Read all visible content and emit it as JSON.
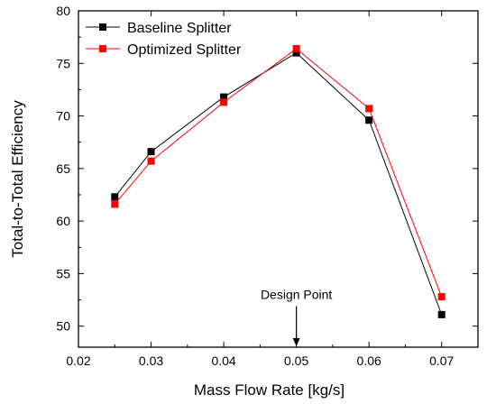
{
  "chart_data": {
    "type": "line",
    "title": "",
    "xlabel": "Mass Flow Rate [kg/s]",
    "ylabel": "Total-to-Total Efficiency",
    "xlim": [
      0.02,
      0.075
    ],
    "ylim": [
      48,
      80
    ],
    "xticks": [
      0.02,
      0.03,
      0.04,
      0.05,
      0.06,
      0.07
    ],
    "xtick_labels": [
      "0.02",
      "0.03",
      "0.04",
      "0.05",
      "0.06",
      "0.07"
    ],
    "yticks": [
      50,
      55,
      60,
      65,
      70,
      75,
      80
    ],
    "ytick_labels": [
      "50",
      "55",
      "60",
      "65",
      "70",
      "75",
      "80"
    ],
    "x": [
      0.025,
      0.03,
      0.04,
      0.05,
      0.06,
      0.07
    ],
    "series": [
      {
        "name": "Baseline Splitter",
        "line_color": "#000000",
        "marker_color": "#000000",
        "marker": "square",
        "values": [
          62.3,
          66.6,
          71.8,
          76.0,
          69.6,
          51.1
        ]
      },
      {
        "name": "Optimized Splitter",
        "line_color": "#ff0000",
        "marker_color": "#ff0000",
        "marker": "square",
        "values": [
          61.6,
          65.7,
          71.3,
          76.4,
          70.7,
          52.8
        ]
      }
    ],
    "legend": {
      "position": "top-left"
    },
    "annotations": [
      {
        "text": "Design Point",
        "x": 0.05,
        "y_text": 52.6,
        "arrow_from_y": 51.9,
        "arrow_to_y": 48.1
      }
    ],
    "grid": false
  }
}
